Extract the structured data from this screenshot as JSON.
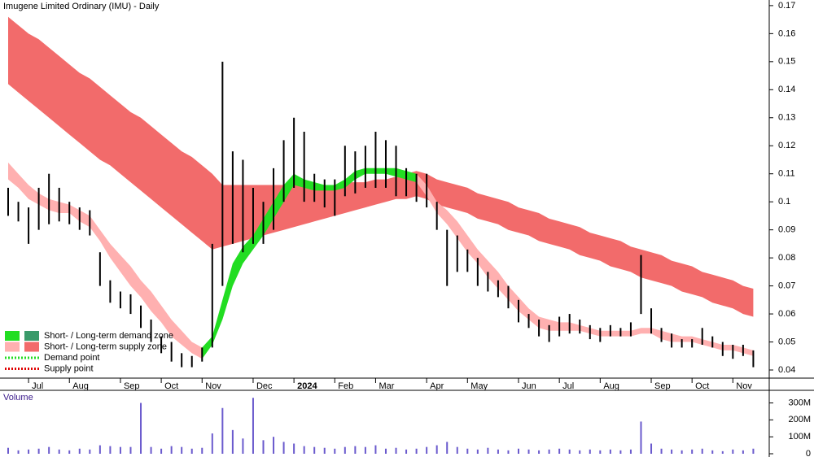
{
  "chart_data": [
    {
      "type": "ohlc",
      "title": "Imugene Limited Ordinary (IMU) - Daily",
      "categories": [
        null,
        null,
        "Jul",
        null,
        null,
        null,
        "Aug",
        null,
        null,
        null,
        null,
        "Sep",
        null,
        null,
        null,
        "Oct",
        null,
        null,
        null,
        "Nov",
        null,
        null,
        null,
        null,
        "Dec",
        null,
        null,
        null,
        "2024",
        null,
        null,
        null,
        "Feb",
        null,
        null,
        null,
        "Mar",
        null,
        null,
        null,
        null,
        "Apr",
        null,
        null,
        null,
        "May",
        null,
        null,
        null,
        null,
        "Jun",
        null,
        null,
        null,
        "Jul",
        null,
        null,
        null,
        "Aug",
        null,
        null,
        null,
        null,
        "Sep",
        null,
        null,
        null,
        "Oct",
        null,
        null,
        null,
        "Nov",
        null,
        null
      ],
      "high": [
        0.105,
        0.1,
        0.098,
        0.105,
        0.11,
        0.105,
        0.1,
        0.098,
        0.097,
        0.082,
        0.072,
        0.068,
        0.067,
        0.063,
        0.058,
        0.052,
        0.05,
        0.046,
        0.045,
        0.048,
        0.085,
        0.15,
        0.118,
        0.115,
        0.105,
        0.1,
        0.112,
        0.122,
        0.13,
        0.125,
        0.11,
        0.108,
        0.108,
        0.12,
        0.118,
        0.12,
        0.125,
        0.122,
        0.12,
        0.112,
        0.11,
        0.11,
        0.1,
        0.09,
        0.088,
        0.083,
        0.08,
        0.075,
        0.072,
        0.07,
        0.065,
        0.06,
        0.058,
        0.056,
        0.059,
        0.06,
        0.058,
        0.056,
        0.055,
        0.056,
        0.055,
        0.057,
        0.081,
        0.062,
        0.055,
        0.053,
        0.051,
        0.051,
        0.055,
        0.052,
        0.05,
        0.049,
        0.049,
        0.047
      ],
      "low": [
        0.095,
        0.093,
        0.085,
        0.09,
        0.092,
        0.093,
        0.092,
        0.09,
        0.088,
        0.07,
        0.064,
        0.062,
        0.06,
        0.055,
        0.05,
        0.046,
        0.043,
        0.041,
        0.041,
        0.043,
        0.048,
        0.07,
        0.085,
        0.082,
        0.085,
        0.085,
        0.09,
        0.1,
        0.105,
        0.1,
        0.1,
        0.098,
        0.095,
        0.102,
        0.103,
        0.105,
        0.105,
        0.105,
        0.102,
        0.102,
        0.1,
        0.098,
        0.09,
        0.07,
        0.075,
        0.075,
        0.07,
        0.068,
        0.066,
        0.062,
        0.057,
        0.055,
        0.052,
        0.05,
        0.052,
        0.053,
        0.053,
        0.051,
        0.05,
        0.052,
        0.052,
        0.052,
        0.06,
        0.053,
        0.05,
        0.048,
        0.048,
        0.048,
        0.049,
        0.048,
        0.045,
        0.044,
        0.045,
        0.041
      ],
      "color": "#000000",
      "zones": [
        {
          "color": "#f26b6b",
          "upper": [
            0.166,
            0.163,
            0.16,
            0.158,
            0.155,
            0.152,
            0.149,
            0.146,
            0.144,
            0.141,
            0.138,
            0.135,
            0.132,
            0.13,
            0.127,
            0.124,
            0.121,
            0.118,
            0.116,
            0.113,
            0.11,
            0.106,
            0.106,
            0.106,
            0.106,
            0.106,
            0.106,
            0.106,
            0.106,
            0.106,
            0.106,
            0.106,
            0.106,
            0.107,
            0.107,
            0.107,
            0.108,
            0.108,
            0.109,
            0.11,
            0.111,
            0.11,
            0.108,
            0.107,
            0.106,
            0.105,
            0.103,
            0.102,
            0.101,
            0.1,
            0.098,
            0.097,
            0.096,
            0.094,
            0.093,
            0.092,
            0.091,
            0.089,
            0.088,
            0.087,
            0.086,
            0.084,
            0.083,
            0.082,
            0.081,
            0.079,
            0.078,
            0.077,
            0.075,
            0.074,
            0.073,
            0.072,
            0.07,
            0.069
          ],
          "lower": [
            0.142,
            0.139,
            0.136,
            0.133,
            0.13,
            0.127,
            0.124,
            0.121,
            0.118,
            0.115,
            0.113,
            0.11,
            0.107,
            0.104,
            0.101,
            0.098,
            0.095,
            0.092,
            0.089,
            0.086,
            0.083,
            0.084,
            0.085,
            0.086,
            0.087,
            0.088,
            0.089,
            0.09,
            0.091,
            0.092,
            0.093,
            0.094,
            0.095,
            0.096,
            0.097,
            0.098,
            0.099,
            0.1,
            0.101,
            0.101,
            0.102,
            0.101,
            0.099,
            0.098,
            0.097,
            0.096,
            0.094,
            0.093,
            0.092,
            0.09,
            0.089,
            0.088,
            0.086,
            0.085,
            0.084,
            0.083,
            0.081,
            0.08,
            0.079,
            0.077,
            0.076,
            0.075,
            0.073,
            0.072,
            0.071,
            0.07,
            0.068,
            0.067,
            0.066,
            0.064,
            0.063,
            0.062,
            0.06,
            0.059
          ]
        },
        {
          "color": "#ffb0b0",
          "upper": [
            0.114,
            0.11,
            0.106,
            0.103,
            0.101,
            0.1,
            0.099,
            0.097,
            0.095,
            0.09,
            0.085,
            0.081,
            0.077,
            0.072,
            0.068,
            0.063,
            0.058,
            0.054,
            0.05,
            0.048,
            null,
            null,
            null,
            null,
            null,
            null,
            null,
            null,
            null,
            null,
            null,
            null,
            null,
            null,
            null,
            null,
            null,
            null,
            null,
            null,
            0.11,
            0.106,
            0.1,
            0.097,
            0.093,
            0.088,
            0.083,
            0.079,
            0.075,
            0.07,
            0.066,
            0.062,
            0.059,
            0.058,
            0.057,
            0.057,
            0.056,
            0.055,
            0.054,
            0.054,
            0.054,
            0.054,
            0.055,
            0.055,
            0.054,
            0.053,
            0.052,
            0.052,
            0.051,
            0.05,
            0.049,
            0.049,
            0.048,
            0.047
          ],
          "lower": [
            0.108,
            0.105,
            0.101,
            0.099,
            0.097,
            0.096,
            0.096,
            0.093,
            0.091,
            0.086,
            0.08,
            0.075,
            0.07,
            0.066,
            0.061,
            0.057,
            0.052,
            0.049,
            0.046,
            0.044,
            null,
            null,
            null,
            null,
            null,
            null,
            null,
            null,
            null,
            null,
            null,
            null,
            null,
            null,
            null,
            null,
            null,
            null,
            null,
            null,
            0.107,
            0.102,
            0.096,
            0.092,
            0.087,
            0.082,
            0.078,
            0.073,
            0.069,
            0.065,
            0.061,
            0.058,
            0.055,
            0.054,
            0.054,
            0.054,
            0.054,
            0.053,
            0.052,
            0.052,
            0.052,
            0.052,
            0.053,
            0.053,
            0.051,
            0.05,
            0.05,
            0.05,
            0.049,
            0.048,
            0.047,
            0.047,
            0.046,
            0.045
          ]
        },
        {
          "color": "#22dd22",
          "upper": [
            null,
            null,
            null,
            null,
            null,
            null,
            null,
            null,
            null,
            null,
            null,
            null,
            null,
            null,
            null,
            null,
            null,
            null,
            null,
            0.048,
            0.052,
            0.065,
            0.078,
            0.084,
            0.088,
            0.094,
            0.1,
            0.106,
            0.11,
            0.108,
            0.107,
            0.106,
            0.106,
            0.108,
            0.111,
            0.112,
            0.112,
            0.112,
            0.112,
            0.111,
            0.11,
            null,
            null,
            null,
            null,
            null,
            null,
            null,
            null,
            null,
            null,
            null,
            null,
            null,
            null,
            null,
            null,
            null,
            null,
            null,
            null,
            null,
            null,
            null,
            null,
            null,
            null,
            null,
            null,
            null,
            null,
            null,
            null,
            null
          ],
          "lower": [
            null,
            null,
            null,
            null,
            null,
            null,
            null,
            null,
            null,
            null,
            null,
            null,
            null,
            null,
            null,
            null,
            null,
            null,
            null,
            0.044,
            0.049,
            0.058,
            0.07,
            0.078,
            0.083,
            0.088,
            0.094,
            0.1,
            0.106,
            0.105,
            0.104,
            0.104,
            0.104,
            0.105,
            0.108,
            0.11,
            0.11,
            0.11,
            0.109,
            0.108,
            0.107,
            null,
            null,
            null,
            null,
            null,
            null,
            null,
            null,
            null,
            null,
            null,
            null,
            null,
            null,
            null,
            null,
            null,
            null,
            null,
            null,
            null,
            null,
            null,
            null,
            null,
            null,
            null,
            null,
            null,
            null,
            null,
            null,
            null
          ]
        }
      ],
      "ylim": [
        0.0371,
        0.172
      ],
      "yticks": [
        0.04,
        0.05,
        0.06,
        0.07,
        0.08,
        0.09,
        0.1,
        0.11,
        0.12,
        0.13,
        0.14,
        0.15,
        0.16,
        0.17
      ],
      "legend": [
        {
          "label": "Short- / Long-term demand zone",
          "colors": [
            "#22dd22",
            "#3a9a6a"
          ]
        },
        {
          "label": "Short- / Long-term supply zone",
          "colors": [
            "#ffb0b0",
            "#f26b6b"
          ]
        },
        {
          "label": "Demand point",
          "colors": [
            "#22dd22"
          ],
          "dotted": true
        },
        {
          "label": "Supply point",
          "colors": [
            "#e00000"
          ],
          "dotted": true
        }
      ]
    },
    {
      "type": "bar",
      "title": "Volume",
      "color": "#6a5acd",
      "values": [
        35,
        20,
        25,
        30,
        40,
        25,
        20,
        30,
        25,
        50,
        45,
        40,
        40,
        300,
        40,
        30,
        45,
        40,
        30,
        35,
        120,
        270,
        140,
        90,
        330,
        80,
        100,
        70,
        60,
        45,
        40,
        35,
        30,
        40,
        45,
        40,
        50,
        30,
        35,
        25,
        30,
        40,
        50,
        70,
        40,
        30,
        25,
        35,
        25,
        20,
        30,
        25,
        20,
        25,
        30,
        25,
        20,
        25,
        20,
        25,
        20,
        25,
        190,
        60,
        30,
        25,
        20,
        25,
        30,
        20,
        15,
        25,
        20,
        30
      ],
      "ylim": [
        0,
        360
      ],
      "yticks": [
        0,
        {
          "value": 100,
          "label": "100M"
        },
        {
          "value": 200,
          "label": "200M"
        },
        {
          "value": 300,
          "label": "300M"
        }
      ]
    }
  ]
}
